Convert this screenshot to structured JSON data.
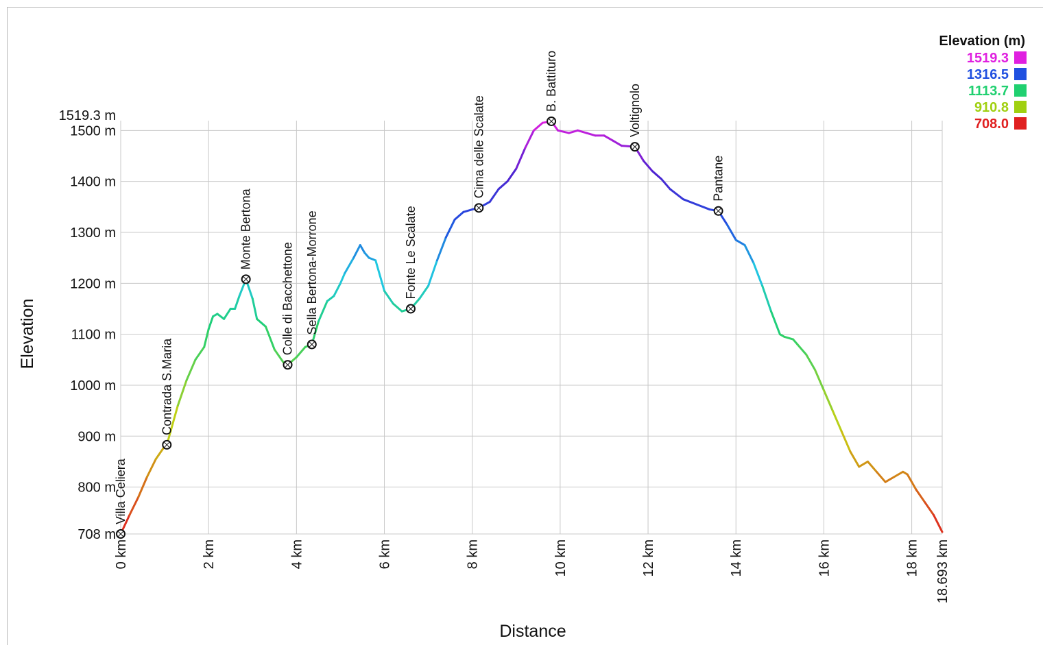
{
  "chart_data": {
    "type": "line",
    "xlabel": "Distance",
    "ylabel": "Elevation",
    "xlim": [
      0,
      18.693
    ],
    "ylim": [
      708,
      1519.3
    ],
    "x_ticks": [
      {
        "value": 0,
        "label": "0 km"
      },
      {
        "value": 2,
        "label": "2 km"
      },
      {
        "value": 4,
        "label": "4 km"
      },
      {
        "value": 6,
        "label": "6 km"
      },
      {
        "value": 8,
        "label": "8 km"
      },
      {
        "value": 10,
        "label": "10 km"
      },
      {
        "value": 12,
        "label": "12 km"
      },
      {
        "value": 14,
        "label": "14 km"
      },
      {
        "value": 16,
        "label": "16 km"
      },
      {
        "value": 18,
        "label": "18 km"
      },
      {
        "value": 18.693,
        "label": "18.693 km"
      }
    ],
    "y_ticks": [
      {
        "value": 708,
        "label": "708 m"
      },
      {
        "value": 800,
        "label": "800 m"
      },
      {
        "value": 900,
        "label": "900 m"
      },
      {
        "value": 1000,
        "label": "1000 m"
      },
      {
        "value": 1100,
        "label": "1100 m"
      },
      {
        "value": 1200,
        "label": "1200 m"
      },
      {
        "value": 1300,
        "label": "1300 m"
      },
      {
        "value": 1400,
        "label": "1400 m"
      },
      {
        "value": 1500,
        "label": "1500 m"
      },
      {
        "value": 1519.3,
        "label": "1519.3 m"
      }
    ],
    "grid": true,
    "legend": {
      "title": "Elevation (m)",
      "position": "top-right",
      "entries": [
        {
          "label": "1519.3",
          "color": "#e020e0"
        },
        {
          "label": "1316.5",
          "color": "#2050e0"
        },
        {
          "label": "1113.7",
          "color": "#20d070"
        },
        {
          "label": "910.8",
          "color": "#a0d010"
        },
        {
          "label": "708.0",
          "color": "#e02020"
        }
      ]
    },
    "series": [
      {
        "x": [
          0,
          0.2,
          0.4,
          0.6,
          0.8,
          1.0,
          1.05,
          1.3,
          1.5,
          1.7,
          1.9,
          2.0,
          2.1,
          2.2,
          2.35,
          2.5,
          2.6,
          2.7,
          2.85,
          3.0,
          3.1,
          3.3,
          3.5,
          3.7,
          3.8,
          4.0,
          4.2,
          4.35,
          4.5,
          4.7,
          4.85,
          5.0,
          5.1,
          5.3,
          5.45,
          5.55,
          5.65,
          5.8,
          6.0,
          6.2,
          6.4,
          6.6,
          6.8,
          7.0,
          7.2,
          7.4,
          7.6,
          7.8,
          8.0,
          8.15,
          8.4,
          8.6,
          8.8,
          9.0,
          9.2,
          9.4,
          9.6,
          9.8,
          9.95,
          10.2,
          10.4,
          10.6,
          10.8,
          11.0,
          11.2,
          11.4,
          11.7,
          11.9,
          12.1,
          12.3,
          12.5,
          12.8,
          13.1,
          13.4,
          13.6,
          13.8,
          14.0,
          14.2,
          14.4,
          14.6,
          14.8,
          15.0,
          15.1,
          15.3,
          15.4,
          15.6,
          15.8,
          16.0,
          16.2,
          16.4,
          16.6,
          16.8,
          17.0,
          17.2,
          17.4,
          17.6,
          17.8,
          17.9,
          18.1,
          18.3,
          18.5,
          18.693
        ],
        "y": [
          708,
          745,
          780,
          820,
          855,
          880,
          883,
          960,
          1010,
          1050,
          1075,
          1110,
          1135,
          1140,
          1130,
          1150,
          1150,
          1175,
          1208,
          1170,
          1130,
          1115,
          1070,
          1045,
          1040,
          1055,
          1075,
          1080,
          1125,
          1165,
          1175,
          1200,
          1220,
          1250,
          1275,
          1260,
          1250,
          1245,
          1185,
          1160,
          1145,
          1150,
          1170,
          1195,
          1245,
          1290,
          1325,
          1340,
          1345,
          1348,
          1360,
          1385,
          1400,
          1425,
          1465,
          1500,
          1515,
          1518,
          1500,
          1495,
          1500,
          1495,
          1490,
          1490,
          1480,
          1470,
          1468,
          1440,
          1420,
          1405,
          1385,
          1365,
          1355,
          1345,
          1342,
          1315,
          1285,
          1275,
          1240,
          1195,
          1145,
          1100,
          1095,
          1090,
          1080,
          1060,
          1030,
          990,
          950,
          910,
          870,
          840,
          850,
          830,
          810,
          820,
          830,
          825,
          795,
          770,
          745,
          712
        ]
      }
    ],
    "waypoints": [
      {
        "name": "Villa Celiera",
        "x": 0,
        "y": 708
      },
      {
        "name": "Contrada S.Maria",
        "x": 1.05,
        "y": 883
      },
      {
        "name": "Monte Bertona",
        "x": 2.85,
        "y": 1208
      },
      {
        "name": "Colle di Bacchettone",
        "x": 3.8,
        "y": 1040
      },
      {
        "name": "Sella Bertona-Morrone",
        "x": 4.35,
        "y": 1080
      },
      {
        "name": "Fonte Le Scalate",
        "x": 6.6,
        "y": 1150
      },
      {
        "name": "Cima delle Scalate",
        "x": 8.15,
        "y": 1348
      },
      {
        "name": "B. Battituro",
        "x": 9.8,
        "y": 1518
      },
      {
        "name": "Voltignolo",
        "x": 11.7,
        "y": 1468
      },
      {
        "name": "Pantane",
        "x": 13.6,
        "y": 1342
      }
    ],
    "gradient_stops": [
      {
        "value": 708,
        "color": "#e02020"
      },
      {
        "value": 910.8,
        "color": "#c8d010"
      },
      {
        "value": 1113.7,
        "color": "#20d070"
      },
      {
        "value": 1215,
        "color": "#20c8e0"
      },
      {
        "value": 1316.5,
        "color": "#2050e0"
      },
      {
        "value": 1420,
        "color": "#5020d0"
      },
      {
        "value": 1519.3,
        "color": "#e020e0"
      }
    ]
  }
}
